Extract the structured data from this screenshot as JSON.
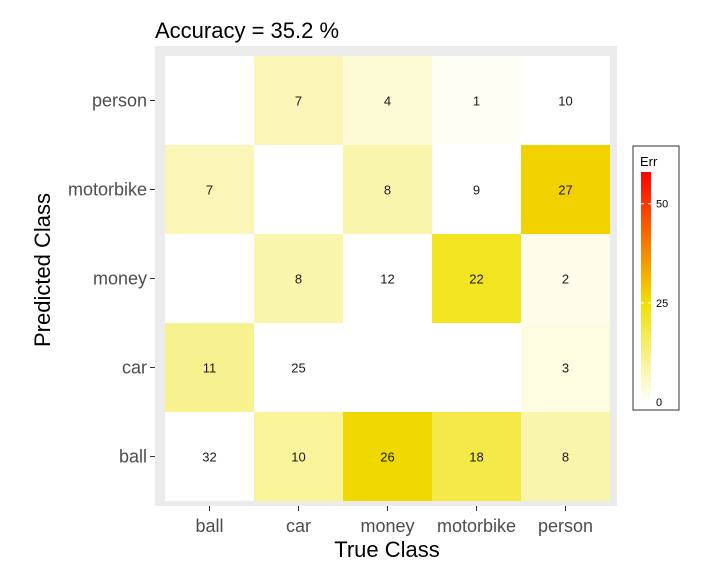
{
  "chart_data": {
    "type": "heatmap",
    "title": "Accuracy =  35.2 %",
    "xlabel": "True Class",
    "ylabel": "Predicted Class",
    "x_categories": [
      "ball",
      "car",
      "money",
      "motorbike",
      "person"
    ],
    "y_categories": [
      "ball",
      "car",
      "money",
      "motorbike",
      "person"
    ],
    "cells": [
      {
        "x": "ball",
        "y": "ball",
        "value": 32,
        "err": 0
      },
      {
        "x": "car",
        "y": "ball",
        "value": 10,
        "err": 10
      },
      {
        "x": "money",
        "y": "ball",
        "value": 26,
        "err": 26
      },
      {
        "x": "motorbike",
        "y": "ball",
        "value": 18,
        "err": 18
      },
      {
        "x": "person",
        "y": "ball",
        "value": 8,
        "err": 8
      },
      {
        "x": "ball",
        "y": "car",
        "value": 11,
        "err": 11
      },
      {
        "x": "car",
        "y": "car",
        "value": 25,
        "err": 0
      },
      {
        "x": "money",
        "y": "car",
        "value": null,
        "err": 0
      },
      {
        "x": "motorbike",
        "y": "car",
        "value": null,
        "err": 0
      },
      {
        "x": "person",
        "y": "car",
        "value": 3,
        "err": 3
      },
      {
        "x": "ball",
        "y": "money",
        "value": null,
        "err": 0
      },
      {
        "x": "car",
        "y": "money",
        "value": 8,
        "err": 8
      },
      {
        "x": "money",
        "y": "money",
        "value": 12,
        "err": 0
      },
      {
        "x": "motorbike",
        "y": "money",
        "value": 22,
        "err": 22
      },
      {
        "x": "person",
        "y": "money",
        "value": 2,
        "err": 2
      },
      {
        "x": "ball",
        "y": "motorbike",
        "value": 7,
        "err": 7
      },
      {
        "x": "car",
        "y": "motorbike",
        "value": null,
        "err": 0
      },
      {
        "x": "money",
        "y": "motorbike",
        "value": 8,
        "err": 8
      },
      {
        "x": "motorbike",
        "y": "motorbike",
        "value": 9,
        "err": 0
      },
      {
        "x": "person",
        "y": "motorbike",
        "value": 27,
        "err": 27
      },
      {
        "x": "ball",
        "y": "person",
        "value": null,
        "err": 0
      },
      {
        "x": "car",
        "y": "person",
        "value": 7,
        "err": 7
      },
      {
        "x": "money",
        "y": "person",
        "value": 4,
        "err": 4
      },
      {
        "x": "motorbike",
        "y": "person",
        "value": 1,
        "err": 1
      },
      {
        "x": "person",
        "y": "person",
        "value": 10,
        "err": 0
      }
    ],
    "legend": {
      "title": "Err",
      "ticks": [
        0,
        25,
        50
      ],
      "range": [
        0,
        58
      ],
      "colors": [
        "#ffffff",
        "#f0e000",
        "#ff0000"
      ],
      "placement": "right"
    },
    "panel_background": "#ebebeb",
    "grid": false
  }
}
